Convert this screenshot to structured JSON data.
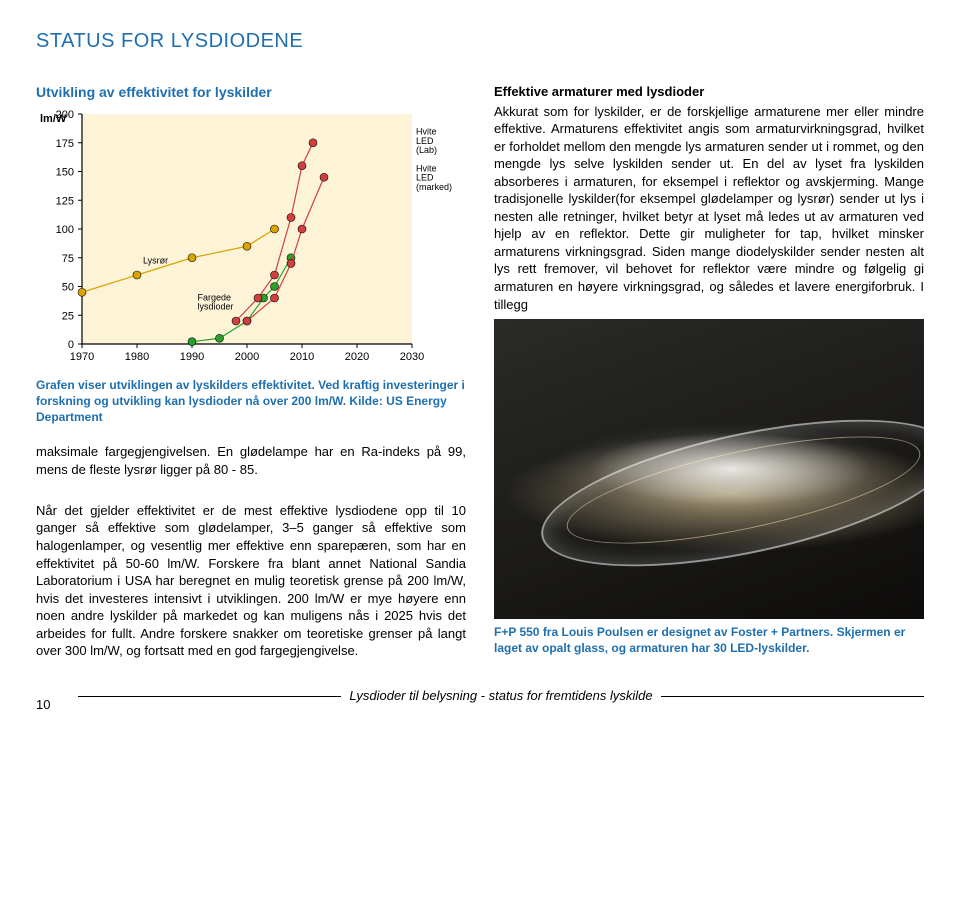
{
  "header": {
    "title": "STATUS FOR LYSDIODENE"
  },
  "chart": {
    "title": "Utvikling av effektivitet for lyskilder",
    "ylabel": "lm/W",
    "type": "line",
    "xlim": [
      1970,
      2030
    ],
    "ylim": [
      0,
      200
    ],
    "xtick_step": 10,
    "ytick_step": 25,
    "xticks": [
      "1970",
      "1980",
      "1990",
      "2000",
      "2010",
      "2020",
      "2030"
    ],
    "yticks": [
      "0",
      "25",
      "50",
      "75",
      "100",
      "125",
      "150",
      "175",
      "200"
    ],
    "background_color": "#fdf4d8",
    "axis_color": "#000000",
    "marker_radius": 4,
    "line_width": 1.2,
    "series": {
      "lysror": {
        "label": "Lysrør",
        "color": "#d9a300",
        "points": [
          [
            1970,
            45
          ],
          [
            1980,
            60
          ],
          [
            1990,
            75
          ],
          [
            2000,
            85
          ],
          [
            2005,
            100
          ]
        ]
      },
      "fargede": {
        "label": "Fargede lysdioder",
        "color": "#2aa02a",
        "points": [
          [
            1990,
            2
          ],
          [
            1995,
            5
          ],
          [
            2000,
            20
          ],
          [
            2003,
            40
          ],
          [
            2005,
            50
          ],
          [
            2008,
            75
          ]
        ]
      },
      "hvite_lab": {
        "label": "Hvite LED (Lab)",
        "color": "#d04040",
        "points": [
          [
            1998,
            20
          ],
          [
            2002,
            40
          ],
          [
            2005,
            60
          ],
          [
            2008,
            110
          ],
          [
            2010,
            155
          ],
          [
            2012,
            175
          ]
        ]
      },
      "hvite_marked": {
        "label": "Hvite LED (marked)",
        "color": "#d04040",
        "points": [
          [
            2000,
            20
          ],
          [
            2005,
            40
          ],
          [
            2008,
            70
          ],
          [
            2010,
            100
          ],
          [
            2014,
            145
          ]
        ]
      }
    },
    "text_labels": {
      "lysror": "Lysrør",
      "fargede_l1": "Fargede",
      "fargede_l2": "lysdioder",
      "lab_l1": "Hvite",
      "lab_l2": "LED",
      "lab_l3": "(Lab)",
      "mkt_l1": "Hvite",
      "mkt_l2": "LED",
      "mkt_l3": "(marked)"
    },
    "caption": "Grafen viser utviklingen av lyskilders effektivitet. Ved kraftig investeringer i forskning og utvikling kan lysdioder nå over 200 lm/W. Kilde: US Energy Department"
  },
  "right": {
    "heading": "Effektive armaturer med lysdioder",
    "para": "Akkurat som for lyskilder, er de forskjellige armaturene mer eller mindre effektive. Armaturens effektivitet angis som armaturvirkningsgrad, hvilket er forholdet mellom den mengde lys armaturen sender ut i rommet, og den mengde lys selve lyskilden sender ut. En del av lyset fra lyskilden absorberes i armaturen, for eksempel i reflektor og avskjerming. Mange tradisjonelle lyskilder(for eksempel glødelamper og lysrør) sender ut lys i nesten alle retninger, hvilket betyr at lyset må ledes ut av armaturen ved hjelp av en reflektor. Dette gir muligheter for tap, hvilket minsker armaturens virkningsgrad. Siden mange diodelyskilder sender nesten alt lys rett fremover, vil behovet for reflektor være mindre og følgelig gi armaturen en høyere virkningsgrad, og således et lavere energiforbruk.  I tillegg"
  },
  "left_body": {
    "p1": "maksimale fargegjengivelsen. En glødelampe har en Ra-indeks på 99, mens de fleste lysrør ligger på 80 - 85.",
    "p2": "Når det gjelder effektivitet er de mest effektive lysdiodene opp til 10 ganger så effektive som glødelamper, 3–5 ganger så effektive som halogenlamper, og vesentlig mer effektive enn sparepæren, som har en effektivitet på 50-60 lm/W. Forskere fra blant annet National Sandia Laboratorium i USA har beregnet en mulig teoretisk grense på 200 lm/W, hvis det investeres intensivt i utviklingen. 200 lm/W er mye høyere enn noen andre lyskilder på markedet og kan muligens nås i 2025 hvis det arbeides for fullt. Andre forskere snakker om teoretiske grenser på langt over 300 lm/W, og fortsatt med en god fargegjengivelse."
  },
  "photo": {
    "caption": "F+P 550 fra Louis Poulsen er designet av Foster + Partners. Skjermen er laget av opalt glass, og armaturen har 30 LED-lyskilder."
  },
  "footer": {
    "page": "10",
    "text": "Lysdioder til belysning - status for fremtidens lyskilde"
  }
}
